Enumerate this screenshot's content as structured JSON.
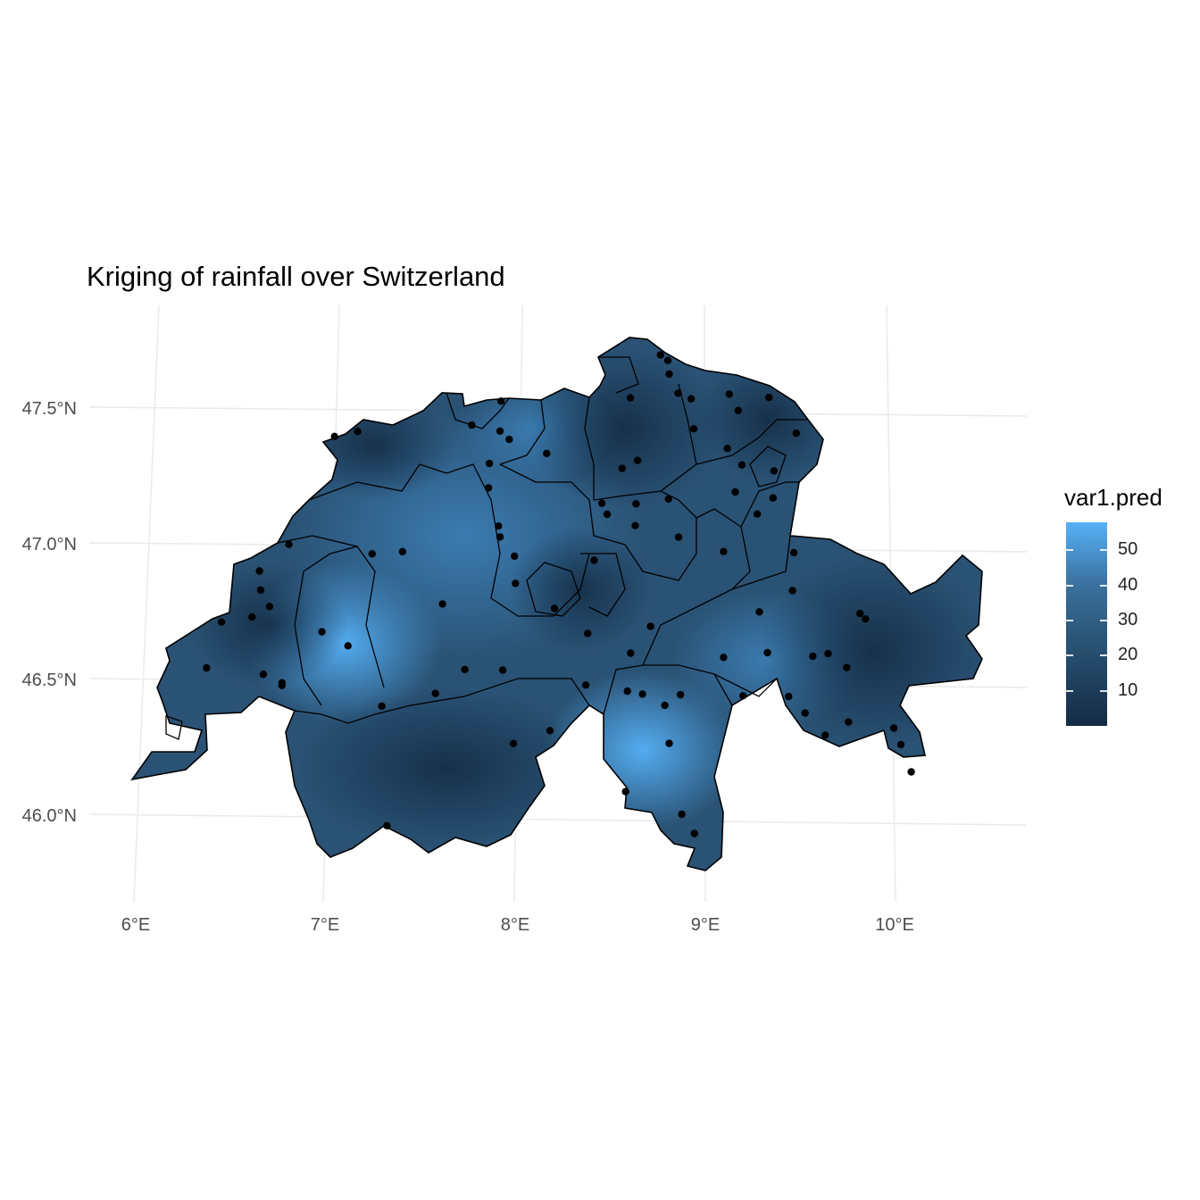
{
  "title": "Kriging of rainfall over Switzerland",
  "chart_data": {
    "type": "map",
    "title": "Kriging of rainfall over Switzerland",
    "region": "Switzerland (cantons)",
    "x_axis": {
      "ticks": [
        "6°E",
        "7°E",
        "8°E",
        "9°E",
        "10°E"
      ],
      "lon_values": [
        6,
        7,
        8,
        9,
        10
      ]
    },
    "y_axis": {
      "ticks": [
        "46.0°N",
        "46.5°N",
        "47.0°N",
        "47.5°N"
      ],
      "lat_values": [
        46.0,
        46.5,
        47.0,
        47.5
      ]
    },
    "grid": true,
    "fill_variable": "var1.pred",
    "legend": {
      "title": "var1.pred",
      "placement": "right",
      "ticks": [
        "10",
        "20",
        "30",
        "40",
        "50"
      ],
      "tick_values": [
        10,
        20,
        30,
        40,
        50
      ],
      "range": [
        0,
        58
      ],
      "color_low": "#132B43",
      "color_high": "#56B1F7"
    },
    "stations": [
      [
        6.35,
        46.54
      ],
      [
        6.42,
        46.71
      ],
      [
        6.58,
        46.73
      ],
      [
        6.61,
        46.9
      ],
      [
        6.62,
        46.83
      ],
      [
        6.65,
        46.52
      ],
      [
        6.67,
        46.77
      ],
      [
        6.75,
        46.48
      ],
      [
        6.75,
        46.49
      ],
      [
        6.76,
        47.0
      ],
      [
        6.95,
        46.68
      ],
      [
        6.98,
        47.4
      ],
      [
        7.1,
        47.42
      ],
      [
        7.09,
        46.63
      ],
      [
        7.2,
        46.97
      ],
      [
        7.28,
        46.41
      ],
      [
        7.33,
        45.97
      ],
      [
        7.36,
        46.98
      ],
      [
        7.56,
        46.46
      ],
      [
        7.58,
        46.79
      ],
      [
        7.7,
        47.45
      ],
      [
        7.71,
        46.55
      ],
      [
        7.8,
        47.31
      ],
      [
        7.8,
        47.22
      ],
      [
        7.85,
        47.54
      ],
      [
        7.85,
        47.43
      ],
      [
        7.86,
        47.08
      ],
      [
        7.87,
        47.04
      ],
      [
        7.9,
        47.4
      ],
      [
        7.91,
        46.55
      ],
      [
        7.95,
        46.97
      ],
      [
        7.96,
        46.87
      ],
      [
        7.98,
        46.28
      ],
      [
        8.1,
        47.35
      ],
      [
        8.17,
        46.33
      ],
      [
        8.17,
        46.78
      ],
      [
        8.35,
        46.5
      ],
      [
        8.35,
        46.69
      ],
      [
        8.37,
        46.96
      ],
      [
        8.4,
        47.17
      ],
      [
        8.43,
        47.13
      ],
      [
        8.5,
        47.3
      ],
      [
        8.53,
        47.56
      ],
      [
        8.58,
        47.33
      ],
      [
        8.58,
        47.17
      ],
      [
        8.58,
        46.62
      ],
      [
        8.58,
        47.09
      ],
      [
        8.57,
        46.48
      ],
      [
        8.58,
        46.11
      ],
      [
        8.65,
        46.47
      ],
      [
        8.68,
        47.72
      ],
      [
        8.68,
        46.72
      ],
      [
        8.72,
        47.7
      ],
      [
        8.73,
        47.65
      ],
      [
        8.75,
        47.19
      ],
      [
        8.77,
        46.43
      ],
      [
        8.78,
        47.58
      ],
      [
        8.8,
        46.29
      ],
      [
        8.81,
        47.05
      ],
      [
        8.85,
        46.47
      ],
      [
        8.88,
        46.03
      ],
      [
        8.85,
        47.56
      ],
      [
        8.87,
        47.45
      ],
      [
        8.95,
        45.96
      ],
      [
        9.05,
        47.38
      ],
      [
        9.05,
        47.58
      ],
      [
        9.07,
        46.61
      ],
      [
        9.05,
        47.0
      ],
      [
        9.1,
        47.52
      ],
      [
        9.13,
        47.32
      ],
      [
        9.1,
        47.22
      ],
      [
        9.18,
        46.47
      ],
      [
        9.22,
        47.14
      ],
      [
        9.25,
        46.78
      ],
      [
        9.26,
        47.57
      ],
      [
        9.3,
        47.3
      ],
      [
        9.3,
        46.63
      ],
      [
        9.3,
        47.2
      ],
      [
        9.41,
        47.44
      ],
      [
        9.42,
        46.47
      ],
      [
        9.42,
        46.86
      ],
      [
        9.42,
        47.0
      ],
      [
        9.51,
        46.41
      ],
      [
        9.54,
        46.62
      ],
      [
        9.62,
        46.33
      ],
      [
        9.62,
        46.63
      ],
      [
        9.72,
        46.58
      ],
      [
        9.74,
        46.38
      ],
      [
        9.78,
        46.78
      ],
      [
        9.81,
        46.76
      ],
      [
        9.98,
        46.36
      ],
      [
        10.02,
        46.3
      ],
      [
        10.08,
        46.2
      ]
    ]
  }
}
